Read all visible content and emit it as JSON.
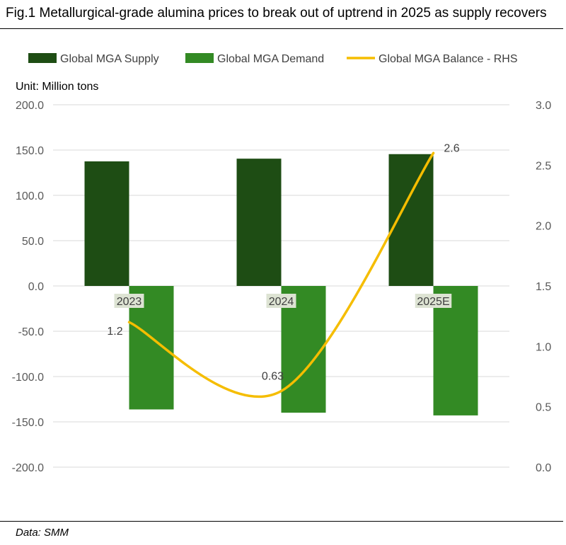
{
  "title": "Fig.1 Metallurgical-grade alumina prices to break out of uptrend in 2025 as supply recovers",
  "source": "Data: SMM",
  "chart_data": {
    "type": "bar",
    "title": "Fig.1 Metallurgical-grade alumina prices to break out of uptrend in 2025 as supply recovers",
    "unit_label": "Unit: Million tons",
    "categories": [
      "2023",
      "2024",
      "2025E"
    ],
    "series": [
      {
        "name": "Global MGA Supply",
        "type": "bar",
        "axis": "left",
        "color": "#1e4d14",
        "values": [
          137.5,
          140.5,
          145.5
        ]
      },
      {
        "name": "Global MGA Demand",
        "type": "bar",
        "axis": "left",
        "color": "#338a24",
        "values": [
          -136.3,
          -139.9,
          -142.9
        ]
      },
      {
        "name": "Global MGA Balance - RHS",
        "type": "line",
        "axis": "right",
        "color": "#f5bd00",
        "values": [
          1.2,
          0.63,
          2.6
        ],
        "data_labels": [
          "1.2",
          "0.63",
          "2.6"
        ]
      }
    ],
    "y_left": {
      "ylim": [
        -200,
        200
      ],
      "ticks": [
        "200.0",
        "150.0",
        "100.0",
        "50.0",
        "0.0",
        "-50.0",
        "-100.0",
        "-150.0",
        "-200.0"
      ]
    },
    "y_right": {
      "ylim": [
        0,
        3
      ],
      "ticks": [
        "3.0",
        "2.5",
        "2.0",
        "1.5",
        "1.0",
        "0.5",
        "0.0"
      ]
    },
    "grid": true,
    "legend": "top"
  }
}
